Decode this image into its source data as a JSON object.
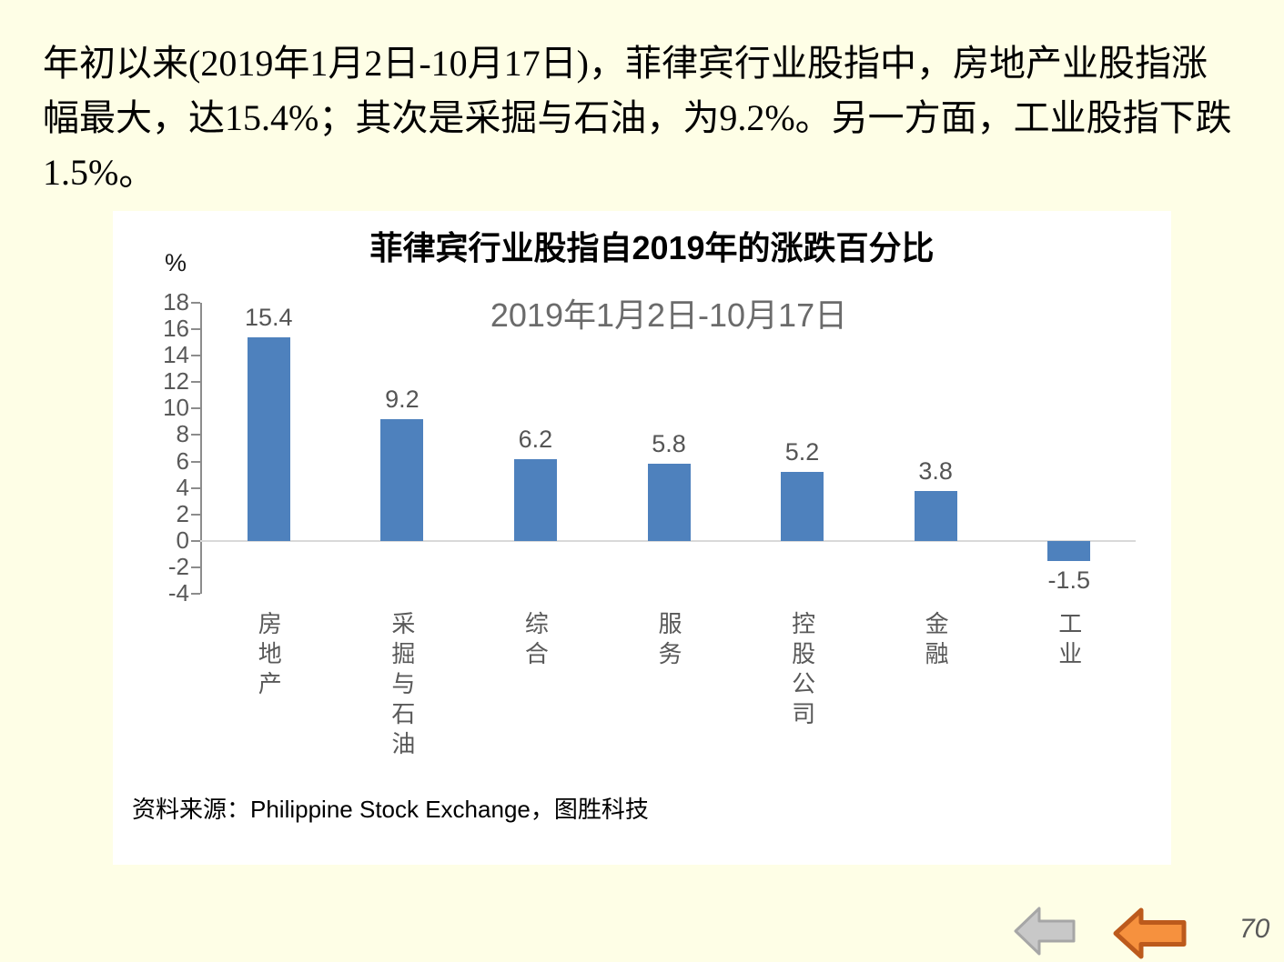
{
  "slide": {
    "intro_lines": [
      "年初以来(2019年1月2日-10月17日)，菲律宾行业股指中，房地产业股指涨",
      "幅最大，达15.4%；其次是采掘与石油，为9.2%。另一方面，工业股指下跌",
      "1.5%。"
    ],
    "page_number": "70"
  },
  "chart_data": {
    "type": "bar",
    "title": "菲律宾行业股指自2019年的涨跌百分比",
    "subtitle": "2019年1月2日-10月17日",
    "unit_label": "%",
    "categories": [
      "房地产",
      "采掘与石油",
      "综合",
      "服务",
      "控股公司",
      "金融",
      "工业"
    ],
    "values": [
      15.4,
      9.2,
      6.2,
      5.8,
      5.2,
      3.8,
      -1.5
    ],
    "ylim": [
      -4,
      18
    ],
    "ytick_step": 2,
    "grid": "off",
    "legend": "none",
    "bar_color": "#4E81BD",
    "source": "资料来源：Philippine Stock Exchange，图胜科技"
  },
  "nav": {
    "back_gray_icon": "left-arrow",
    "back_orange_icon": "left-arrow",
    "gray_fill": "#C8C8C8",
    "gray_stroke": "#A6A6A6",
    "orange_fill": "#F6913E",
    "orange_stroke": "#BC5A1C"
  }
}
